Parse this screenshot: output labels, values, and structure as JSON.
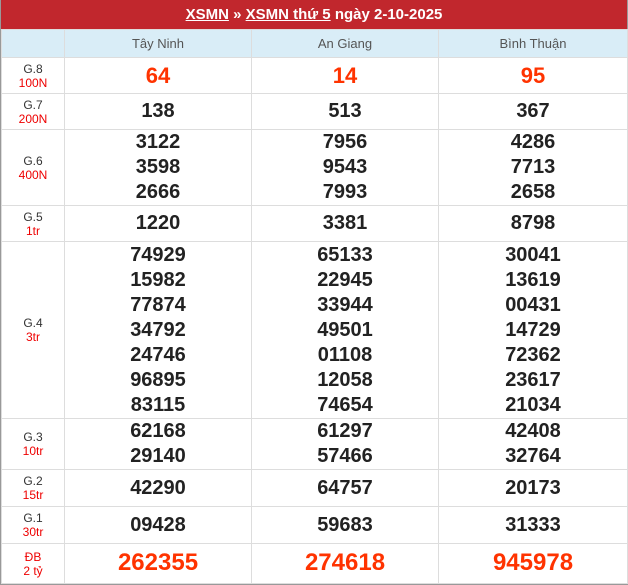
{
  "title": {
    "link1": "XSMN",
    "sep": "»",
    "link2": "XSMN thứ 5",
    "date": "ngày 2-10-2025"
  },
  "provinces": [
    "Tây Ninh",
    "An Giang",
    "Bình Thuận"
  ],
  "prizes": [
    {
      "name": "G.8",
      "amount": "100N",
      "values": [
        [
          "64"
        ],
        [
          "14"
        ],
        [
          "95"
        ]
      ]
    },
    {
      "name": "G.7",
      "amount": "200N",
      "values": [
        [
          "138"
        ],
        [
          "513"
        ],
        [
          "367"
        ]
      ]
    },
    {
      "name": "G.6",
      "amount": "400N",
      "values": [
        [
          "3122",
          "3598",
          "2666"
        ],
        [
          "7956",
          "9543",
          "7993"
        ],
        [
          "4286",
          "7713",
          "2658"
        ]
      ]
    },
    {
      "name": "G.5",
      "amount": "1tr",
      "values": [
        [
          "1220"
        ],
        [
          "3381"
        ],
        [
          "8798"
        ]
      ]
    },
    {
      "name": "G.4",
      "amount": "3tr",
      "values": [
        [
          "74929",
          "15982",
          "77874",
          "34792",
          "24746",
          "96895",
          "83115"
        ],
        [
          "65133",
          "22945",
          "33944",
          "49501",
          "01108",
          "12058",
          "74654"
        ],
        [
          "30041",
          "13619",
          "00431",
          "14729",
          "72362",
          "23617",
          "21034"
        ]
      ]
    },
    {
      "name": "G.3",
      "amount": "10tr",
      "values": [
        [
          "62168",
          "29140"
        ],
        [
          "61297",
          "57466"
        ],
        [
          "42408",
          "32764"
        ]
      ]
    },
    {
      "name": "G.2",
      "amount": "15tr",
      "values": [
        [
          "42290"
        ],
        [
          "64757"
        ],
        [
          "20173"
        ]
      ]
    },
    {
      "name": "G.1",
      "amount": "30tr",
      "values": [
        [
          "09428"
        ],
        [
          "59683"
        ],
        [
          "31333"
        ]
      ]
    },
    {
      "name": "ĐB",
      "amount": "2 tỷ",
      "values": [
        [
          "262355"
        ],
        [
          "274618"
        ],
        [
          "945978"
        ]
      ]
    }
  ],
  "colors": {
    "title_bg": "#c1272d",
    "header_bg": "#d9edf7",
    "highlight": "#ff3300"
  }
}
